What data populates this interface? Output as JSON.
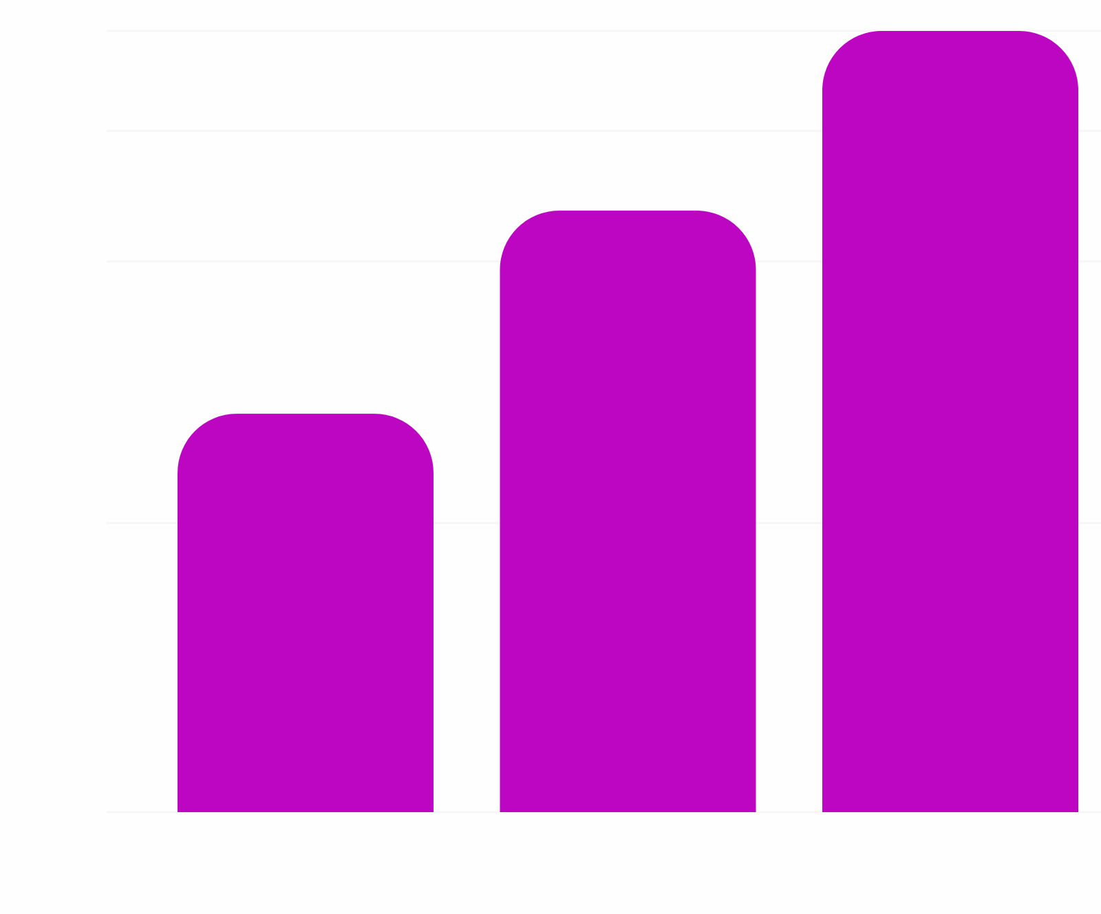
{
  "chart_data": {
    "type": "bar",
    "title": "",
    "xlabel": "",
    "ylabel": "",
    "categories": [
      "",
      "",
      ""
    ],
    "values": [
      51,
      77,
      100
    ],
    "ylim": [
      0,
      100
    ],
    "gridlines": [
      0,
      37,
      70.5,
      87.2,
      100
    ],
    "grid": true,
    "legend": "none",
    "bar_color": "#bd06c1",
    "grid_color": "#f6f6f6",
    "background": "#fefefe",
    "rounded_top_corners": true
  }
}
